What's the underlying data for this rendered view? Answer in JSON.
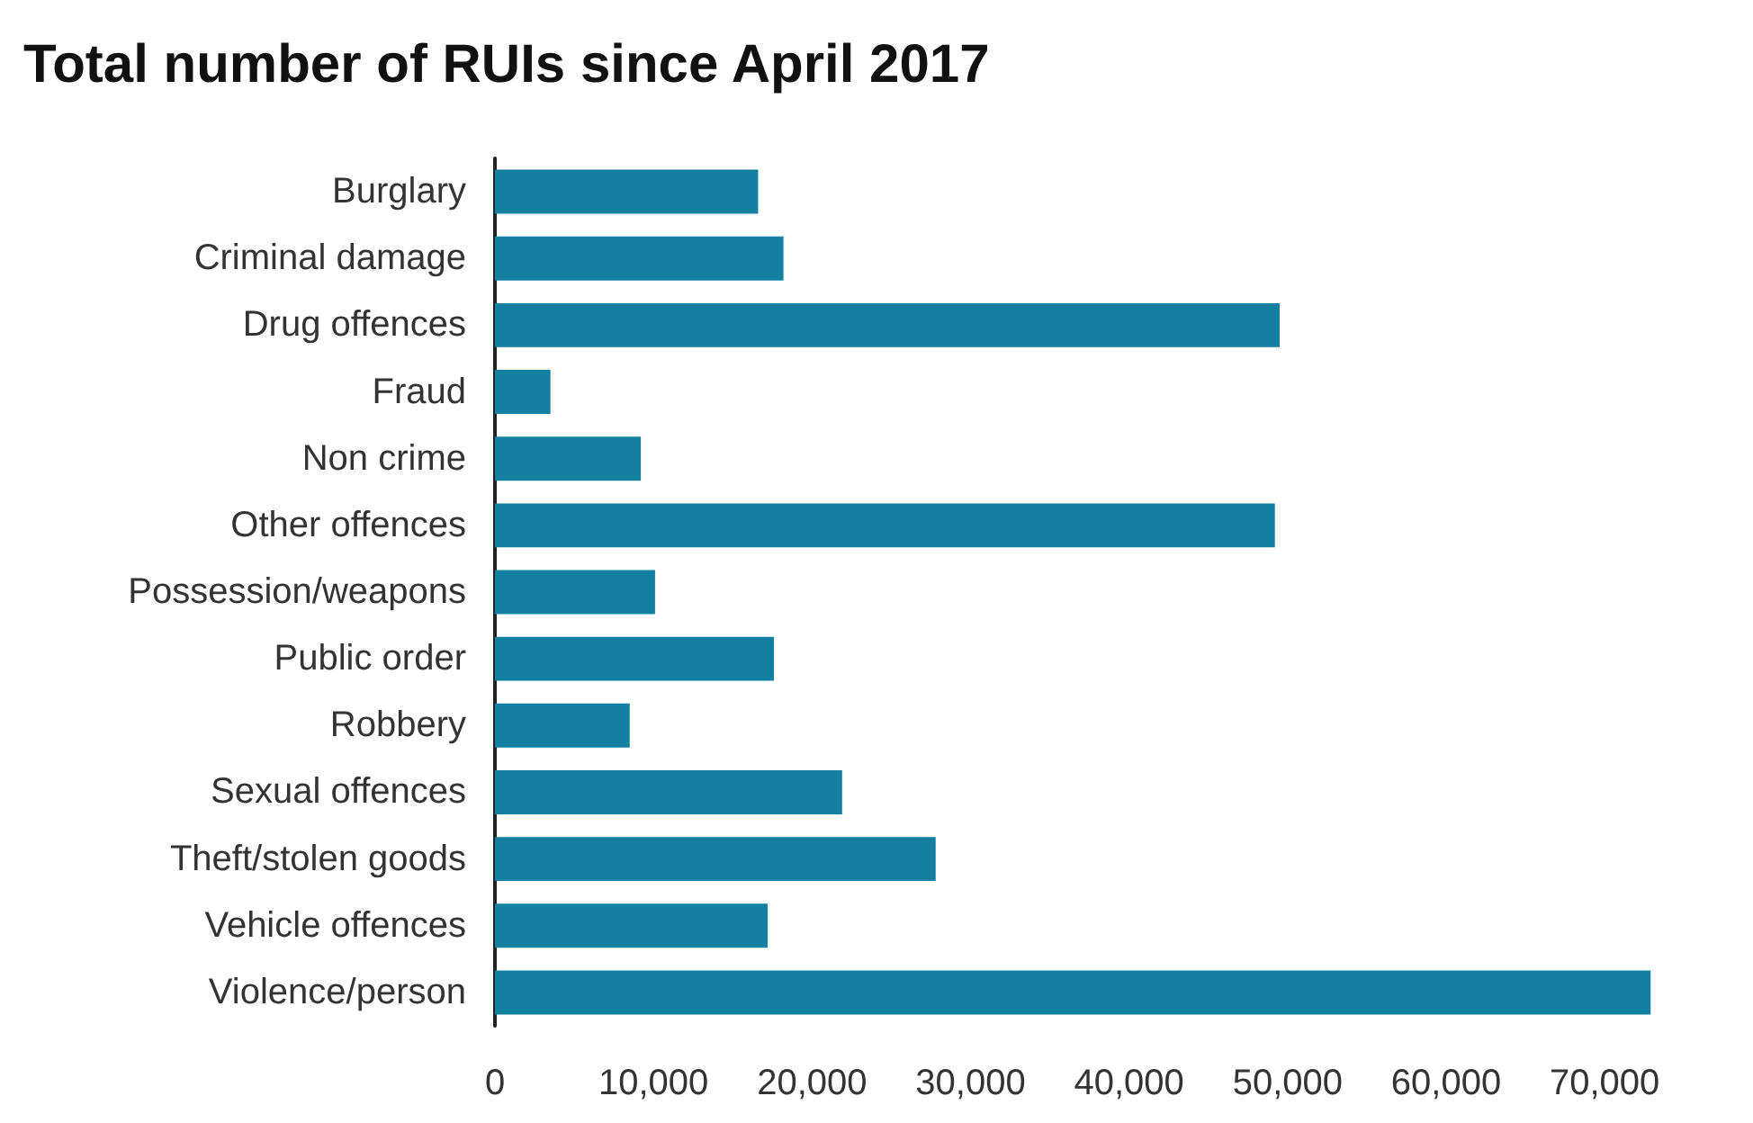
{
  "chart_data": {
    "type": "bar",
    "orientation": "horizontal",
    "title": "Total number of RUIs since April 2017",
    "categories": [
      "Burglary",
      "Criminal damage",
      "Drug offences",
      "Fraud",
      "Non crime",
      "Other offences",
      "Possession/weapons",
      "Public order",
      "Robbery",
      "Sexual offences",
      "Theft/stolen goods",
      "Vehicle offences",
      "Violence/person"
    ],
    "values": [
      16600,
      18200,
      49500,
      3500,
      9200,
      49200,
      10100,
      17600,
      8500,
      21900,
      27800,
      17200,
      72900
    ],
    "color": "#1380a1",
    "xlim": [
      0,
      73000
    ],
    "xticks": [
      0,
      {
        "value": 10000,
        "label": "10,000"
      },
      {
        "value": 20000,
        "label": "20,000"
      },
      {
        "value": 30000,
        "label": "30,000"
      },
      {
        "value": 40000,
        "label": "40,000"
      },
      {
        "value": 50000,
        "label": "50,000"
      },
      {
        "value": 60000,
        "label": "60,000"
      },
      {
        "value": 70000,
        "label": "70,000"
      }
    ],
    "grid": false
  }
}
